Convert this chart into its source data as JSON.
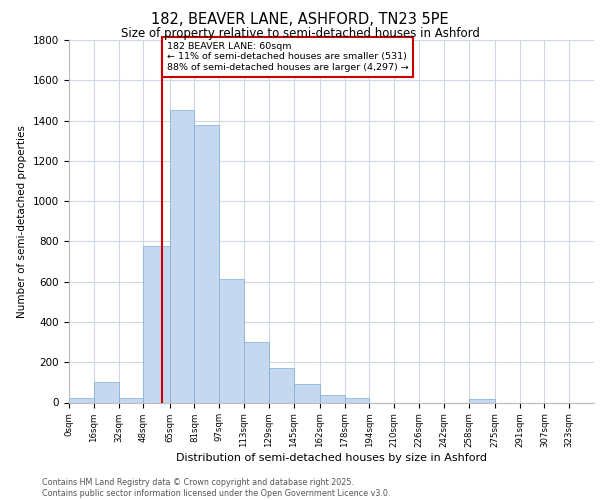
{
  "title": "182, BEAVER LANE, ASHFORD, TN23 5PE",
  "subtitle": "Size of property relative to semi-detached houses in Ashford",
  "xlabel": "Distribution of semi-detached houses by size in Ashford",
  "ylabel": "Number of semi-detached properties",
  "annotation_line1": "182 BEAVER LANE: 60sqm",
  "annotation_line2": "← 11% of semi-detached houses are smaller (531)",
  "annotation_line3": "88% of semi-detached houses are larger (4,297) →",
  "property_value": 60,
  "bar_left_edges": [
    0,
    16,
    32,
    48,
    65,
    81,
    97,
    113,
    129,
    145,
    162,
    178,
    194,
    210,
    226,
    242,
    258,
    275,
    291,
    307
  ],
  "bar_heights": [
    20,
    100,
    20,
    775,
    1450,
    1380,
    615,
    300,
    170,
    90,
    35,
    20,
    0,
    0,
    0,
    0,
    15,
    0,
    0,
    0
  ],
  "tick_labels": [
    "0sqm",
    "16sqm",
    "32sqm",
    "48sqm",
    "65sqm",
    "81sqm",
    "97sqm",
    "113sqm",
    "129sqm",
    "145sqm",
    "162sqm",
    "178sqm",
    "194sqm",
    "210sqm",
    "226sqm",
    "242sqm",
    "258sqm",
    "275sqm",
    "291sqm",
    "307sqm",
    "323sqm"
  ],
  "bar_color": "#c5d8f0",
  "bar_edge_color": "#7aaed6",
  "marker_color": "#cc0000",
  "annotation_box_color": "#cc0000",
  "background_color": "#ffffff",
  "grid_color": "#d0d8e8",
  "ylim": [
    0,
    1800
  ],
  "yticks": [
    0,
    200,
    400,
    600,
    800,
    1000,
    1200,
    1400,
    1600,
    1800
  ],
  "footer_line1": "Contains HM Land Registry data © Crown copyright and database right 2025.",
  "footer_line2": "Contains public sector information licensed under the Open Government Licence v3.0."
}
